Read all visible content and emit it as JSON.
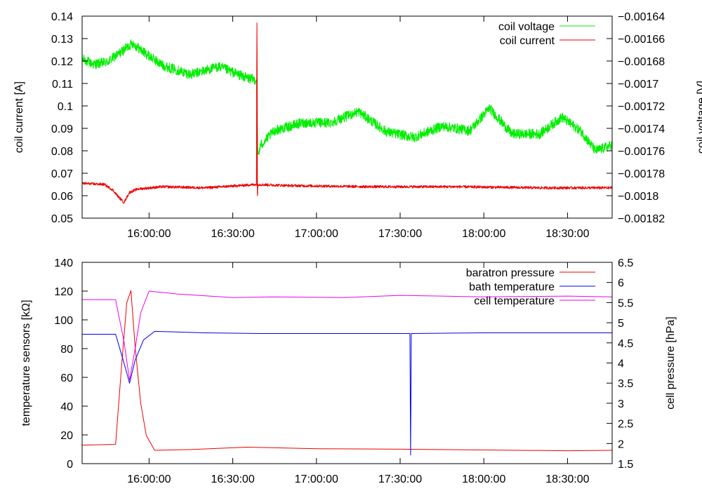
{
  "chart_data": [
    {
      "type": "line",
      "title": "",
      "xlim": [
        "15:36:00",
        "18:46:00"
      ],
      "xticks": [
        "16:00:00",
        "16:30:00",
        "17:00:00",
        "17:30:00",
        "18:00:00",
        "18:30:00"
      ],
      "y_left": {
        "label": "coil current [A]",
        "lim": [
          0.05,
          0.14
        ],
        "ticks": [
          0.05,
          0.06,
          0.07,
          0.08,
          0.09,
          0.1,
          0.11,
          0.12,
          0.13,
          0.14
        ],
        "tick_labels": [
          "0.05",
          "0.06",
          "0.07",
          "0.08",
          "0.09",
          "0.1",
          "0.11",
          "0.12",
          "0.13",
          "0.14"
        ]
      },
      "y_right": {
        "label": "coil voltage [V]",
        "lim": [
          -0.00182,
          -0.00164
        ],
        "ticks": [
          -0.00182,
          -0.0018,
          -0.00178,
          -0.00176,
          -0.00174,
          -0.00172,
          -0.0017,
          -0.00168,
          -0.00166,
          -0.00164
        ],
        "tick_labels": [
          "−0.00182",
          "−0.0018",
          "−0.00178",
          "−0.00176",
          "−0.00174",
          "−0.00172",
          "−0.0017",
          "−0.00168",
          "−0.00166",
          "−0.00164"
        ]
      },
      "legend_position": "top-right",
      "grid": false,
      "series": [
        {
          "name": "coil voltage",
          "axis": "right",
          "color": "#00ee00",
          "noise": 4.5e-06,
          "x": [
            "15:36:00",
            "15:40:00",
            "15:45:00",
            "15:50:00",
            "15:54:00",
            "15:58:00",
            "16:05:00",
            "16:15:00",
            "16:25:00",
            "16:35:00",
            "16:38:30",
            "16:39:00",
            "16:40:00",
            "16:45:00",
            "16:55:00",
            "17:05:00",
            "17:15:00",
            "17:25:00",
            "17:35:00",
            "17:45:00",
            "17:55:00",
            "18:02:00",
            "18:10:00",
            "18:20:00",
            "18:28:00",
            "18:35:00",
            "18:40:00",
            "18:46:00"
          ],
          "y": [
            -0.001678,
            -0.001683,
            -0.001681,
            -0.001672,
            -0.001664,
            -0.001672,
            -0.001684,
            -0.001692,
            -0.001685,
            -0.001695,
            -0.001697,
            -0.001765,
            -0.001755,
            -0.001742,
            -0.001735,
            -0.001735,
            -0.001725,
            -0.001743,
            -0.001748,
            -0.001738,
            -0.001742,
            -0.001722,
            -0.001745,
            -0.001745,
            -0.00173,
            -0.001743,
            -0.00176,
            -0.001755
          ]
        },
        {
          "name": "coil current",
          "axis": "left",
          "color": "#ee0000",
          "noise": 0.0006,
          "x": [
            "15:36:00",
            "15:44:00",
            "15:47:00",
            "15:49:00",
            "15:51:00",
            "15:53:00",
            "15:56:00",
            "16:05:00",
            "16:20:00",
            "16:38:30",
            "16:38:40",
            "16:38:50",
            "16:39:00",
            "16:50:00",
            "17:20:00",
            "17:50:00",
            "18:20:00",
            "18:46:00"
          ],
          "y": [
            0.0655,
            0.065,
            0.0625,
            0.0595,
            0.057,
            0.0615,
            0.063,
            0.064,
            0.0635,
            0.065,
            0.137,
            0.06,
            0.065,
            0.0645,
            0.064,
            0.064,
            0.0635,
            0.0635
          ]
        }
      ]
    },
    {
      "type": "line",
      "title": "",
      "xlim": [
        "15:36:00",
        "18:46:00"
      ],
      "xticks": [
        "16:00:00",
        "16:30:00",
        "17:00:00",
        "17:30:00",
        "18:00:00",
        "18:30:00"
      ],
      "y_left": {
        "label": "temperature sensors [kΩ]",
        "lim": [
          0,
          140
        ],
        "ticks": [
          0,
          20,
          40,
          60,
          80,
          100,
          120,
          140
        ],
        "tick_labels": [
          "0",
          "20",
          "40",
          "60",
          "80",
          "100",
          "120",
          "140"
        ]
      },
      "y_right": {
        "label": "cell pressure [hPa]",
        "lim": [
          1.5,
          6.5
        ],
        "ticks": [
          1.5,
          2,
          2.5,
          3,
          3.5,
          4,
          4.5,
          5,
          5.5,
          6,
          6.5
        ],
        "tick_labels": [
          "1.5",
          "2",
          "2.5",
          "3",
          "3.5",
          "4",
          "4.5",
          "5",
          "5.5",
          "6",
          "6.5"
        ]
      },
      "legend_position": "top-right",
      "grid": false,
      "series": [
        {
          "name": "baratron pressure",
          "axis": "right",
          "color": "#ee0000",
          "x": [
            "15:36:00",
            "15:48:00",
            "15:50:00",
            "15:52:00",
            "15:53:30",
            "15:55:00",
            "15:57:00",
            "15:59:00",
            "16:02:00",
            "16:15:00",
            "16:35:00",
            "17:00:00",
            "17:30:00",
            "18:00:00",
            "18:30:00",
            "18:46:00"
          ],
          "y": [
            1.96,
            1.98,
            3.8,
            5.5,
            5.8,
            4.4,
            3.0,
            2.2,
            1.83,
            1.85,
            1.91,
            1.87,
            1.86,
            1.84,
            1.82,
            1.83
          ]
        },
        {
          "name": "bath temperature",
          "axis": "left",
          "color": "#0000ee",
          "x": [
            "15:36:00",
            "15:48:00",
            "15:51:00",
            "15:53:00",
            "15:55:00",
            "15:58:00",
            "16:02:00",
            "16:20:00",
            "16:40:00",
            "17:00:00",
            "17:33:30",
            "17:33:45",
            "17:34:00",
            "17:34:15",
            "18:00:00",
            "18:46:00"
          ],
          "y": [
            90,
            90,
            70,
            56,
            72,
            86,
            92,
            91,
            90.5,
            90.5,
            90.5,
            6,
            90.5,
            90.5,
            91,
            91
          ]
        },
        {
          "name": "cell temperature",
          "axis": "left",
          "color": "#ee00ee",
          "x": [
            "15:36:00",
            "15:48:00",
            "15:51:00",
            "15:53:00",
            "15:55:00",
            "15:57:00",
            "16:00:00",
            "16:10:00",
            "16:30:00",
            "16:45:00",
            "17:10:00",
            "17:30:00",
            "18:00:00",
            "18:30:00",
            "18:46:00"
          ],
          "y": [
            114,
            114,
            85,
            58,
            80,
            105,
            120,
            118,
            115.5,
            116,
            115.5,
            117,
            116,
            116.5,
            116
          ]
        }
      ]
    }
  ]
}
